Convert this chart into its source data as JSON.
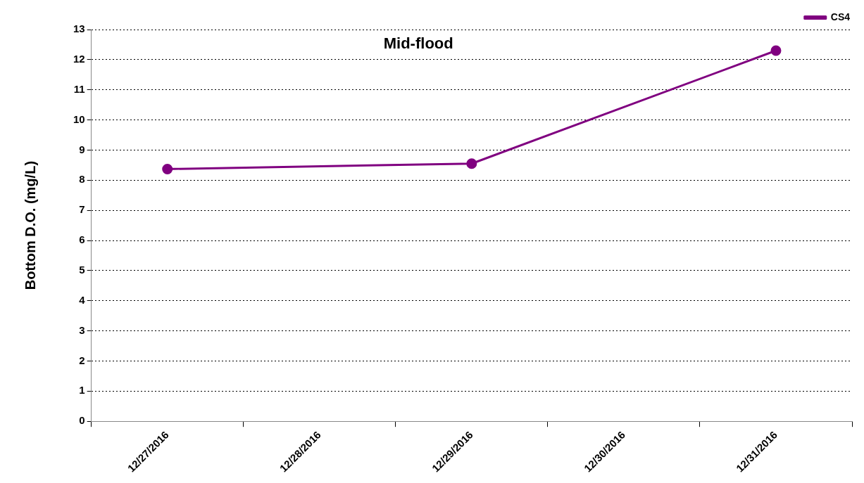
{
  "chart_data": {
    "type": "line",
    "title": "Mid-flood",
    "ylabel": "Bottom D.O. (mg/L)",
    "categories": [
      "12/27/2016",
      "12/28/2016",
      "12/29/2016",
      "12/30/2016",
      "12/31/2016"
    ],
    "series": [
      {
        "name": "CS4",
        "color": "#800080",
        "values": [
          8.37,
          null,
          8.55,
          null,
          12.3
        ]
      }
    ],
    "ylim": [
      0,
      13
    ],
    "yticks": [
      0,
      1,
      2,
      3,
      4,
      5,
      6,
      7,
      8,
      9,
      10,
      11,
      12,
      13
    ],
    "grid": "y",
    "legend": "top right",
    "marker": "circle",
    "line_style": "solid"
  }
}
